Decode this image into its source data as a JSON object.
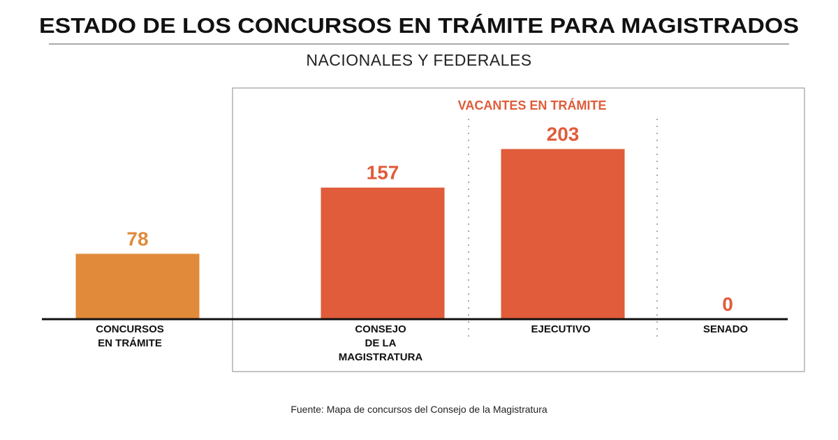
{
  "chart_data": {
    "type": "bar",
    "title": "ESTADO DE LOS CONCURSOS EN TRÁMITE PARA MAGISTRADOS",
    "subtitle": "NACIONALES Y FEDERALES",
    "group_label": "VACANTES EN TRÁMITE",
    "categories": [
      [
        "CONCURSOS",
        "EN TRÁMITE"
      ],
      [
        "CONSEJO",
        "DE LA",
        "MAGISTRATURA"
      ],
      [
        "EJECUTIVO"
      ],
      [
        "SENADO"
      ]
    ],
    "values": [
      78,
      157,
      203,
      0
    ],
    "value_labels": [
      "78",
      "157",
      "203",
      "0"
    ],
    "colors": [
      "#E08A3A",
      "#E05C3A",
      "#E05C3A",
      "#E05C3A"
    ],
    "ylim": [
      0,
      240
    ],
    "grid": false,
    "xlabel": "",
    "ylabel": "",
    "source": "Fuente: Mapa de concursos del Consejo de la Magistratura"
  }
}
